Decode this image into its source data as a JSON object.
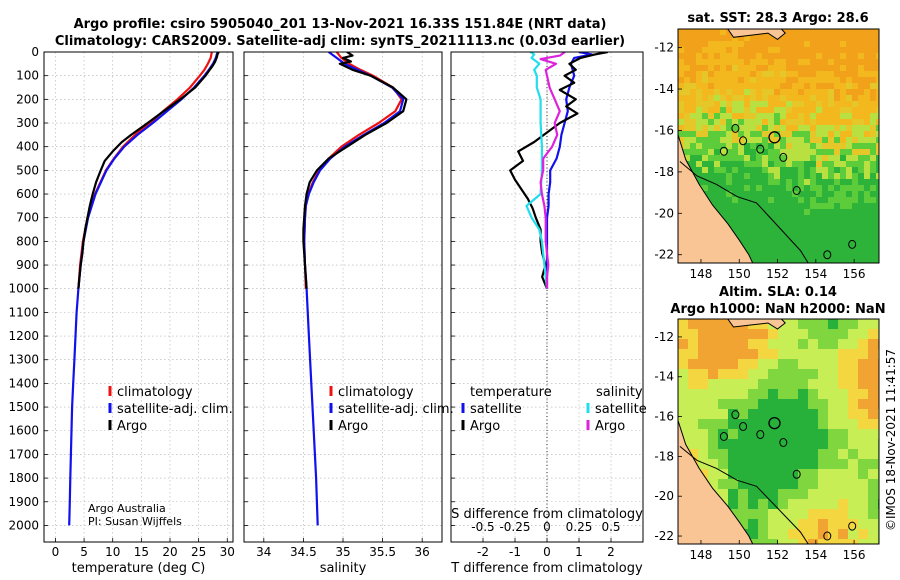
{
  "title": {
    "line1": "Argo profile: csiro 5905040_201 13-Nov-2021 16.33S 151.84E (NRT data)",
    "line2": "Climatology: CARS2009. Satellite-adj clim: synTS_20211113.nc (0.03d earlier)"
  },
  "colors": {
    "argo": "#000000",
    "clim": "#ee1111",
    "sat": "#1111ee",
    "sat_s": "#22ddee",
    "argo_s": "#dd22dd",
    "grid": "#b0b0b0"
  },
  "credit": {
    "line1": "Argo Australia",
    "line2": "PI: Susan Wijffels"
  },
  "timestamp": "©IMOS 18-Nov-2021 11:41:57",
  "chart_data": [
    {
      "type": "line",
      "name": "temperature",
      "xlabel": "temperature (deg C)",
      "ylabel": "",
      "xlim": [
        -2,
        31
      ],
      "ylim": [
        0,
        2070
      ],
      "y_reversed": true,
      "x_ticks": [
        0,
        5,
        10,
        15,
        20,
        25,
        30
      ],
      "x_tick_labels": [
        "0",
        "5",
        "10",
        "15",
        "20",
        "25",
        "30"
      ],
      "y_ticks": [
        0,
        100,
        200,
        300,
        400,
        500,
        600,
        700,
        800,
        900,
        1000,
        1100,
        1200,
        1300,
        1400,
        1500,
        1600,
        1700,
        1800,
        1900,
        2000
      ],
      "legend": [
        "climatology",
        "satellite-adj. clim.",
        "Argo"
      ],
      "series": [
        {
          "name": "climatology",
          "color": "#ee1111",
          "depth": [
            0,
            25,
            50,
            75,
            100,
            150,
            200,
            250,
            300,
            350,
            400,
            450,
            500,
            600,
            700,
            800,
            900,
            1000
          ],
          "values": [
            27.3,
            27.1,
            26.6,
            26.0,
            25.2,
            23.5,
            21.3,
            18.8,
            16.5,
            13.9,
            11.8,
            10.2,
            8.8,
            6.9,
            5.6,
            4.8,
            4.3,
            4.0
          ]
        },
        {
          "name": "satellite-adj. clim.",
          "color": "#1111ee",
          "depth": [
            0,
            25,
            50,
            75,
            100,
            150,
            200,
            250,
            300,
            350,
            400,
            450,
            500,
            600,
            700,
            800,
            900,
            1000,
            1100,
            1200,
            1300,
            1400,
            1500,
            1600,
            1700,
            1800,
            1900,
            2000
          ],
          "values": [
            28.3,
            28.0,
            27.5,
            26.8,
            26.0,
            24.2,
            22.0,
            19.5,
            17.0,
            14.3,
            12.0,
            10.3,
            8.9,
            7.0,
            5.7,
            4.9,
            4.4,
            4.0,
            3.7,
            3.5,
            3.3,
            3.1,
            2.9,
            2.8,
            2.7,
            2.6,
            2.5,
            2.4
          ]
        },
        {
          "name": "Argo",
          "color": "#000000",
          "depth": [
            0,
            10,
            20,
            40,
            60,
            80,
            100,
            150,
            200,
            250,
            300,
            350,
            380,
            420,
            460,
            500,
            550,
            600,
            650,
            700,
            750,
            800,
            850,
            900,
            950,
            1000
          ],
          "values": [
            28.5,
            28.3,
            28.2,
            27.9,
            27.4,
            26.8,
            26.2,
            24.4,
            21.8,
            18.9,
            16.1,
            13.2,
            11.6,
            10.0,
            8.6,
            7.9,
            7.1,
            6.5,
            6.0,
            5.6,
            5.2,
            4.9,
            4.7,
            4.4,
            4.2,
            4.0
          ]
        }
      ]
    },
    {
      "type": "line",
      "name": "salinity",
      "xlabel": "salinity",
      "xlim": [
        33.75,
        36.25
      ],
      "ylim": [
        0,
        2070
      ],
      "y_reversed": true,
      "x_ticks": [
        34,
        34.5,
        35,
        35.5,
        36
      ],
      "x_tick_labels": [
        "34",
        "34.5",
        "35",
        "35.5",
        "36"
      ],
      "legend": [
        "climatology",
        "satellite-adj. clim.",
        "Argo"
      ],
      "series": [
        {
          "name": "climatology",
          "color": "#ee1111",
          "depth": [
            0,
            25,
            50,
            75,
            100,
            150,
            200,
            250,
            300,
            350,
            400,
            450,
            500,
            550,
            600,
            650,
            700,
            800,
            900,
            1000
          ],
          "values": [
            34.92,
            34.98,
            35.08,
            35.22,
            35.38,
            35.63,
            35.74,
            35.66,
            35.45,
            35.2,
            34.98,
            34.82,
            34.7,
            34.62,
            34.56,
            34.53,
            34.52,
            34.51,
            34.52,
            34.53
          ]
        },
        {
          "name": "satellite-adj. clim.",
          "color": "#1111ee",
          "depth": [
            0,
            25,
            50,
            75,
            100,
            150,
            200,
            250,
            300,
            350,
            400,
            450,
            500,
            550,
            600,
            650,
            700,
            800,
            900,
            1000,
            1200,
            1400,
            1600,
            1800,
            2000
          ],
          "values": [
            34.82,
            34.92,
            35.02,
            35.18,
            35.35,
            35.62,
            35.76,
            35.72,
            35.52,
            35.26,
            35.02,
            34.84,
            34.71,
            34.63,
            34.57,
            34.53,
            34.52,
            34.51,
            34.52,
            34.54,
            34.57,
            34.6,
            34.63,
            34.66,
            34.68
          ]
        },
        {
          "name": "Argo",
          "color": "#000000",
          "depth": [
            0,
            15,
            25,
            40,
            50,
            75,
            100,
            150,
            200,
            250,
            300,
            350,
            400,
            450,
            500,
            550,
            600,
            650,
            700,
            750,
            800,
            850,
            900,
            950,
            1000
          ],
          "values": [
            35.05,
            35.12,
            35.0,
            35.1,
            34.96,
            35.12,
            35.35,
            35.63,
            35.8,
            35.76,
            35.55,
            35.28,
            35.05,
            34.82,
            34.67,
            34.58,
            34.54,
            34.52,
            34.51,
            34.5,
            34.5,
            34.51,
            34.52,
            34.53,
            34.54
          ]
        }
      ]
    },
    {
      "type": "line",
      "name": "differences",
      "xlabel": "T difference from climatology",
      "x2label": "S difference from climatology",
      "xlim": [
        -3,
        3
      ],
      "x2lim": [
        -0.75,
        0.75
      ],
      "ylim": [
        0,
        2070
      ],
      "y_reversed": true,
      "x_ticks": [
        -2,
        -1,
        0,
        1,
        2
      ],
      "x_tick_labels": [
        "-2",
        "-1",
        "0",
        "1",
        "2"
      ],
      "x2_ticks": [
        -0.5,
        -0.25,
        0,
        0.25,
        0.5
      ],
      "x2_tick_labels": [
        "-0.5",
        "-0.25",
        "0",
        "0.25",
        "0.5"
      ],
      "legend_temperature": {
        "title": "temperature",
        "items": [
          "satellite",
          "Argo"
        ]
      },
      "legend_salinity": {
        "title": "salinity",
        "items": [
          "satellite",
          "Argo"
        ]
      },
      "series": [
        {
          "name": "temperature satellite",
          "color": "#1111ee",
          "depth": [
            0,
            10,
            25,
            50,
            75,
            100,
            150,
            200,
            250,
            300,
            350,
            400,
            450,
            500,
            550,
            600,
            650,
            700,
            750,
            800,
            850,
            900,
            950,
            1000
          ],
          "values": [
            1.0,
            1.4,
            0.85,
            0.75,
            0.8,
            0.85,
            0.7,
            0.6,
            0.65,
            0.55,
            0.45,
            0.4,
            0.3,
            0.1,
            0.1,
            0.05,
            0.05,
            0.0,
            0.0,
            0.0,
            0.0,
            0.0,
            0.0,
            0.0
          ]
        },
        {
          "name": "temperature Argo",
          "color": "#000000",
          "depth": [
            0,
            10,
            25,
            50,
            75,
            100,
            130,
            160,
            200,
            230,
            260,
            300,
            340,
            380,
            420,
            460,
            500,
            540,
            580,
            620,
            660,
            700,
            750,
            800,
            850,
            900,
            950,
            1000
          ],
          "values": [
            1.9,
            1.5,
            1.05,
            0.7,
            0.9,
            0.55,
            0.85,
            0.4,
            0.9,
            0.6,
            0.95,
            0.4,
            0.0,
            -0.4,
            -0.9,
            -0.75,
            -1.15,
            -1.0,
            -0.8,
            -0.6,
            -0.45,
            -0.35,
            -0.2,
            -0.2,
            -0.15,
            -0.05,
            -0.15,
            0.0
          ]
        },
        {
          "name": "salinity satellite",
          "color": "#22ddee",
          "depth": [
            0,
            10,
            25,
            50,
            75,
            100,
            150,
            200,
            300,
            400,
            500,
            600,
            650,
            700,
            750,
            800,
            900,
            1000
          ],
          "values": [
            -0.13,
            -0.1,
            -0.12,
            -0.06,
            -0.1,
            -0.08,
            -0.08,
            -0.05,
            -0.05,
            -0.04,
            -0.04,
            -0.05,
            -0.16,
            -0.12,
            -0.06,
            -0.04,
            -0.02,
            0.0
          ]
        },
        {
          "name": "salinity Argo",
          "color": "#dd22dd",
          "depth": [
            0,
            15,
            30,
            50,
            75,
            100,
            150,
            200,
            250,
            300,
            350,
            400,
            450,
            500,
            550,
            600,
            650,
            700,
            750,
            800,
            850,
            900,
            950,
            1000
          ],
          "values": [
            0.14,
            0.1,
            -0.05,
            0.07,
            -0.01,
            0.0,
            0.02,
            0.06,
            0.1,
            0.06,
            0.08,
            0.04,
            -0.03,
            -0.03,
            -0.05,
            -0.04,
            -0.02,
            -0.01,
            -0.01,
            -0.01,
            0.0,
            0.01,
            0.0,
            0.0
          ]
        }
      ]
    },
    {
      "type": "heatmap",
      "name": "sst-map",
      "title": "sat. SST: 28.3 Argo: 28.6",
      "xlim": [
        146.8,
        157.3
      ],
      "ylim": [
        -22.4,
        -11.1
      ],
      "x_ticks": [
        148,
        150,
        152,
        154,
        156
      ],
      "x_tick_labels": [
        "148",
        "150",
        "152",
        "154",
        "156"
      ],
      "y_ticks": [
        -12,
        -14,
        -16,
        -18,
        -20,
        -22
      ],
      "y_tick_labels": [
        "-12",
        "-14",
        "-16",
        "-18",
        "-20",
        "-22"
      ],
      "float_position": [
        151.84,
        -16.33
      ]
    },
    {
      "type": "heatmap",
      "name": "sla-map",
      "title": "Altim. SLA: 0.14",
      "subtitle": "Argo h1000: NaN h2000: NaN",
      "xlim": [
        146.8,
        157.3
      ],
      "ylim": [
        -22.4,
        -11.1
      ],
      "x_ticks": [
        148,
        150,
        152,
        154,
        156
      ],
      "x_tick_labels": [
        "148",
        "150",
        "152",
        "154",
        "156"
      ],
      "y_ticks": [
        -12,
        -14,
        -16,
        -18,
        -20,
        -22
      ],
      "y_tick_labels": [
        "-12",
        "-14",
        "-16",
        "-18",
        "-20",
        "-22"
      ],
      "float_position": [
        151.84,
        -16.33
      ]
    }
  ]
}
